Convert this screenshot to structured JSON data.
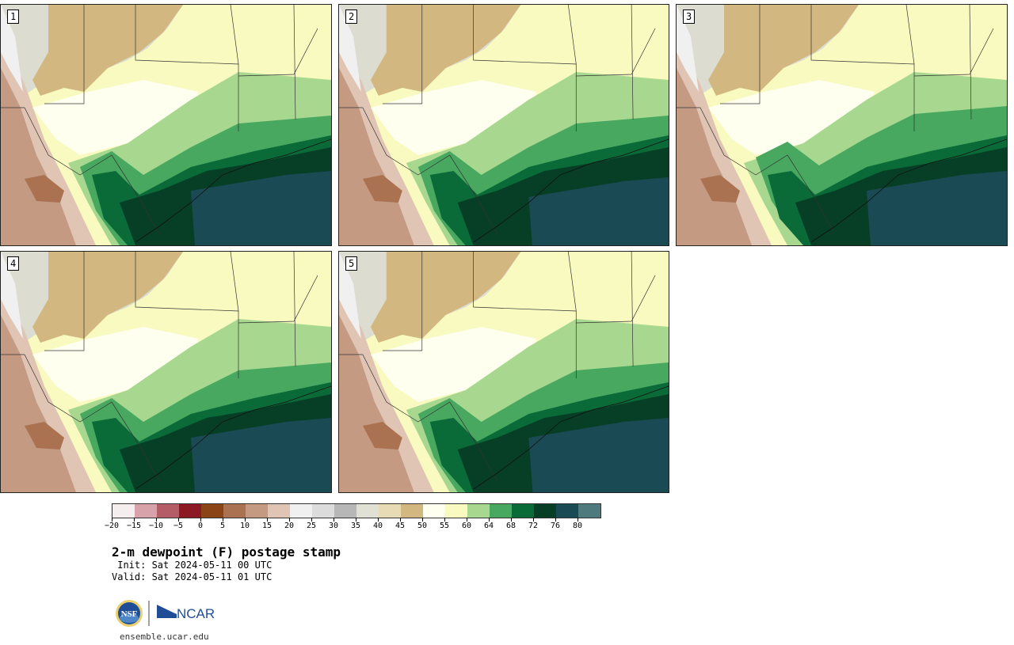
{
  "panels": [
    {
      "label": "1",
      "variant": 0
    },
    {
      "label": "2",
      "variant": 1
    },
    {
      "label": "3",
      "variant": 2
    },
    {
      "label": "4",
      "variant": 0
    },
    {
      "label": "5",
      "variant": 1
    }
  ],
  "colorbar": {
    "colors": [
      "#f5eeee",
      "#d8a2aa",
      "#b55d66",
      "#8b1a24",
      "#8a4416",
      "#aa7250",
      "#c49a82",
      "#e0c4b4",
      "#f0f0f0",
      "#dcdcdc",
      "#b7b7b7",
      "#e0e0d4",
      "#e6dbb4",
      "#d2b880",
      "#fffff0",
      "#f8fac0",
      "#a8d890",
      "#48a860",
      "#0a6a38",
      "#063f26",
      "#1a4a54",
      "#4e7a7e"
    ],
    "ticks": [
      "−20",
      "−15",
      "−10",
      "−5",
      "0",
      "5",
      "10",
      "15",
      "20",
      "25",
      "30",
      "35",
      "40",
      "45",
      "50",
      "55",
      "60",
      "64",
      "68",
      "72",
      "76",
      "80"
    ]
  },
  "title": "2-m dewpoint (F) postage stamp",
  "init": " Init: Sat 2024-05-11 00 UTC",
  "valid": "Valid: Sat 2024-05-11 01 UTC",
  "logos": {
    "nsf": "NSF",
    "ncar": "NCAR"
  },
  "site": "ensemble.ucar.edu",
  "colors": {
    "gulf": "#1a4a54",
    "ocean_dark": "#063f26"
  }
}
